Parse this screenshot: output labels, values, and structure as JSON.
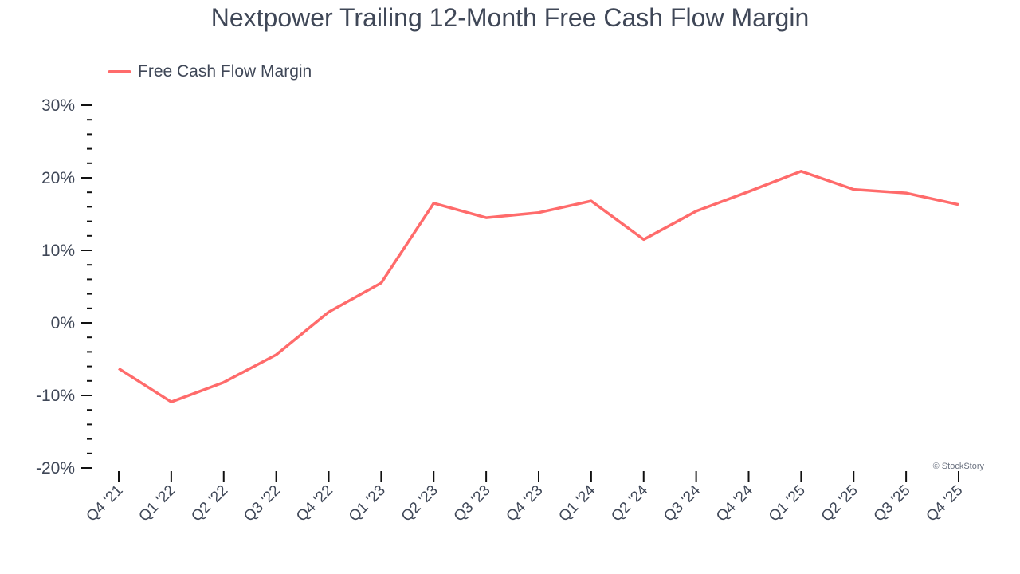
{
  "title": "Nextpower Trailing 12-Month Free Cash Flow Margin",
  "legend": {
    "label": "Free Cash Flow Margin",
    "color": "#ff6b6b"
  },
  "credit": "© StockStory",
  "chart_data": {
    "type": "line",
    "title": "Nextpower Trailing 12-Month Free Cash Flow Margin",
    "xlabel": "",
    "ylabel": "",
    "ylim": [
      -20,
      30
    ],
    "y_ticks": [
      "30%",
      "20%",
      "10%",
      "0%",
      "-10%",
      "-20%"
    ],
    "y_tick_values": [
      30,
      20,
      10,
      0,
      -10,
      -20
    ],
    "grid": false,
    "legend_position": "top-left",
    "categories": [
      "Q4 '21",
      "Q1 '22",
      "Q2 '22",
      "Q3 '22",
      "Q4 '22",
      "Q1 '23",
      "Q2 '23",
      "Q3 '23",
      "Q4 '23",
      "Q1 '24",
      "Q2 '24",
      "Q3 '24",
      "Q4 '24",
      "Q1 '25",
      "Q2 '25",
      "Q3 '25",
      "Q4 '25"
    ],
    "series": [
      {
        "name": "Free Cash Flow Margin",
        "color": "#ff6b6b",
        "values": [
          -6.3,
          -10.9,
          -8.2,
          -4.4,
          1.5,
          5.5,
          16.5,
          14.5,
          15.2,
          16.8,
          11.5,
          15.4,
          18.1,
          20.9,
          18.4,
          17.9,
          16.3
        ]
      }
    ]
  }
}
